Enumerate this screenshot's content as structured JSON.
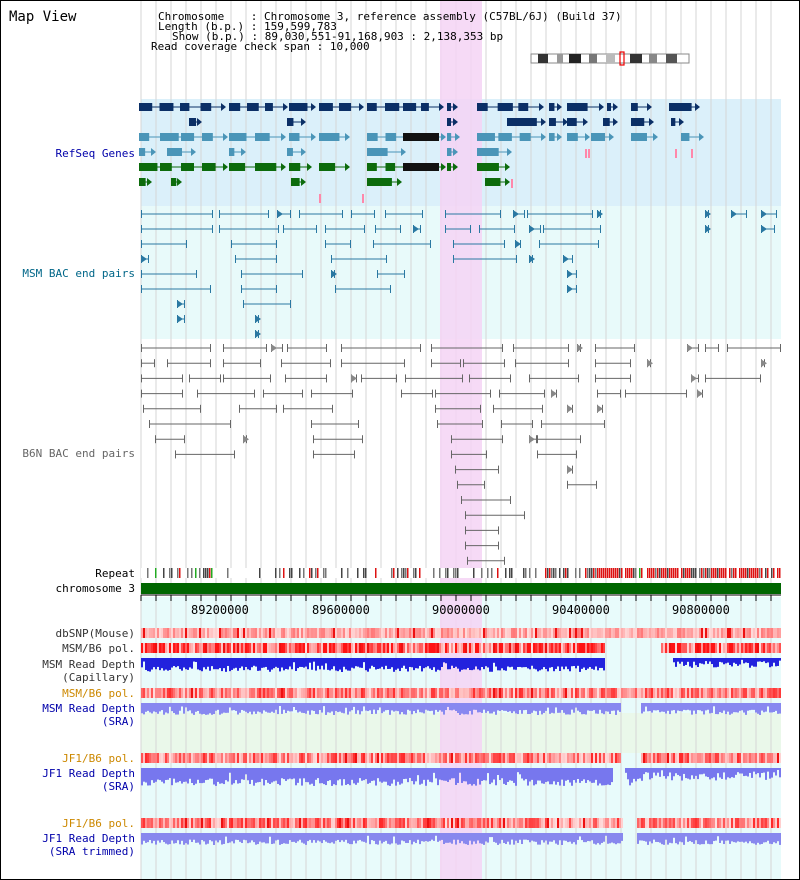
{
  "window": {
    "title": "Map View"
  },
  "info": {
    "chromosome_label": "Chromosome",
    "chromosome_value": "Chromosome 3, reference assembly (C57BL/6J) (Build 37)",
    "length_label": "Length (b.p.)",
    "length_value": "159,599,783",
    "show_label": "Show (b.p.)",
    "show_value": "89,030,551-91,168,903 : 2,138,353 bp",
    "coverage_label": "Read coverage check span",
    "coverage_value": "10,000"
  },
  "tracks": {
    "refseq": "RefSeq Genes",
    "msm_bac": "MSM BAC end pairs",
    "b6n_bac": "B6N BAC end pairs",
    "repeat": "Repeat",
    "chromosome": "chromosome 3",
    "dbsnp": "dbSNP(Mouse)",
    "msm_b6_pol_1": "MSM/B6 pol.",
    "msm_read_depth_cap_1": "MSM Read Depth",
    "msm_read_depth_cap_2": "(Capillary)",
    "msm_b6_pol_2": "MSM/B6 pol.",
    "msm_read_depth_sra_1": "MSM Read Depth",
    "msm_read_depth_sra_2": "(SRA)",
    "jf1_b6_pol_1": "JF1/B6 pol.",
    "jf1_read_depth_sra_1": "JF1 Read Depth",
    "jf1_read_depth_sra_2": "(SRA)",
    "jf1_b6_pol_2": "JF1/B6 pol.",
    "jf1_read_depth_trim_1": "JF1 Read Depth",
    "jf1_read_depth_trim_2": "(SRA trimmed)"
  },
  "axis": {
    "ticks": [
      "89200000",
      "89600000",
      "90000000",
      "90400000",
      "90800000"
    ]
  },
  "colors": {
    "refseq_bg": "#dbf0fa",
    "msm_bg": "#e8fafa",
    "highlight": "#f5d3f5",
    "gene_dark": "#0b2f66",
    "gene_mid": "#4a95b8",
    "gene_green": "#0c6b0c",
    "bac_msm": "#2a78a2",
    "bac_b6n": "#666666",
    "chrom_bar": "#006600",
    "label_blue": "#0000aa",
    "label_teal": "#006688",
    "label_orange": "#cc8800"
  }
}
